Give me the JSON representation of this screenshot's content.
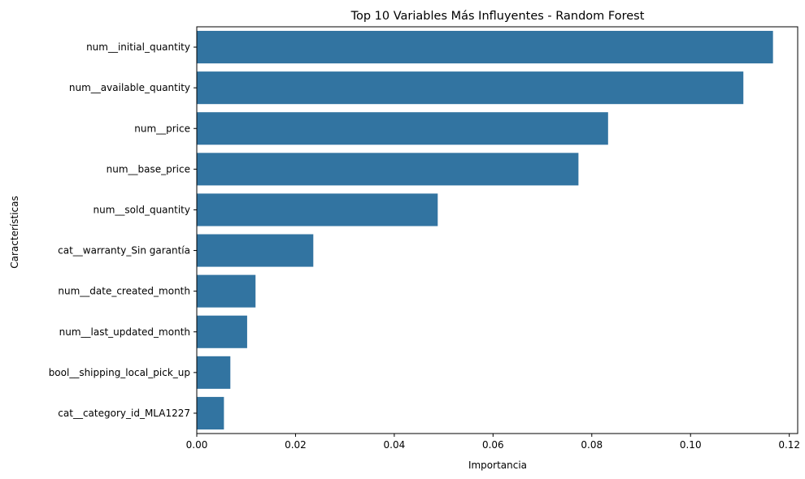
{
  "chart_data": {
    "type": "bar",
    "orientation": "horizontal",
    "title": "Top 10 Variables Más Influyentes - Random Forest",
    "xlabel": "Importancia",
    "ylabel": "Características",
    "categories": [
      "num__initial_quantity",
      "num__available_quantity",
      "num__price",
      "num__base_price",
      "num__sold_quantity",
      "cat__warranty_Sin garantía",
      "num__date_created_month",
      "num__last_updated_month",
      "bool__shipping_local_pick_up",
      "cat__category_id_MLA1227"
    ],
    "values": [
      0.1167,
      0.1107,
      0.0833,
      0.0773,
      0.0488,
      0.0236,
      0.0119,
      0.0102,
      0.0068,
      0.0055
    ],
    "xlim": [
      0,
      0.1217
    ],
    "xticks": [
      0.0,
      0.02,
      0.04,
      0.06,
      0.08,
      0.1,
      0.12
    ],
    "xtick_labels": [
      "0.00",
      "0.02",
      "0.04",
      "0.06",
      "0.08",
      "0.10",
      "0.12"
    ],
    "grid": false,
    "bar_color": "#3274a1"
  }
}
